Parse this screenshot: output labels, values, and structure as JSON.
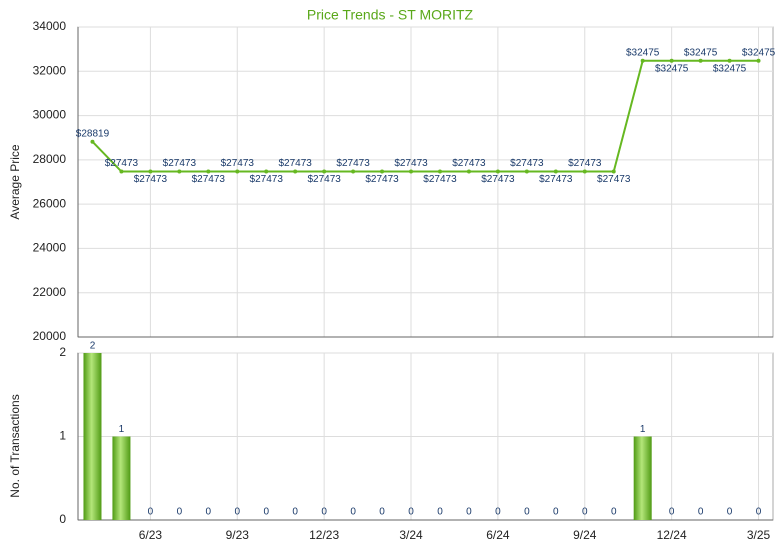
{
  "chart_data": [
    {
      "type": "line",
      "title": "Price Trends - ST MORITZ",
      "y_label": "Average Price",
      "color": "#66b821",
      "series": [
        {
          "name": "Average Price",
          "color": "#66b821",
          "values": [
            28819,
            27473,
            27473,
            27473,
            27473,
            27473,
            27473,
            27473,
            27473,
            27473,
            27473,
            27473,
            27473,
            27473,
            27473,
            27473,
            27473,
            27473,
            27473,
            32475,
            32475,
            32475,
            32475,
            32475
          ],
          "value_labels": [
            "$28819",
            "$27473",
            "$27473",
            "$27473",
            "$27473",
            "$27473",
            "$27473",
            "$27473",
            "$27473",
            "$27473",
            "$27473",
            "$27473",
            "$27473",
            "$27473",
            "$27473",
            "$27473",
            "$27473",
            "$27473",
            "$27473",
            "$32475",
            "$32475",
            "$32475",
            "$32475",
            "$32475"
          ]
        }
      ],
      "ylim": [
        20000,
        34000
      ],
      "yticks": [
        20000,
        22000,
        24000,
        26000,
        28000,
        30000,
        32000,
        34000
      ],
      "grid": true
    },
    {
      "type": "bar",
      "y_label": "No. of Transactions",
      "color": "#6cc22a",
      "categories": [
        null,
        null,
        "6/23",
        null,
        null,
        "9/23",
        null,
        null,
        "12/23",
        null,
        null,
        "3/24",
        null,
        null,
        "6/24",
        null,
        null,
        "9/24",
        null,
        null,
        "12/24",
        null,
        null,
        "3/25"
      ],
      "values": [
        2,
        1,
        0,
        0,
        0,
        0,
        0,
        0,
        0,
        0,
        0,
        0,
        0,
        0,
        0,
        0,
        0,
        0,
        0,
        1,
        0,
        0,
        0,
        0
      ],
      "ylim": [
        0,
        2
      ],
      "yticks": [
        0,
        1,
        2
      ],
      "grid": true
    }
  ]
}
